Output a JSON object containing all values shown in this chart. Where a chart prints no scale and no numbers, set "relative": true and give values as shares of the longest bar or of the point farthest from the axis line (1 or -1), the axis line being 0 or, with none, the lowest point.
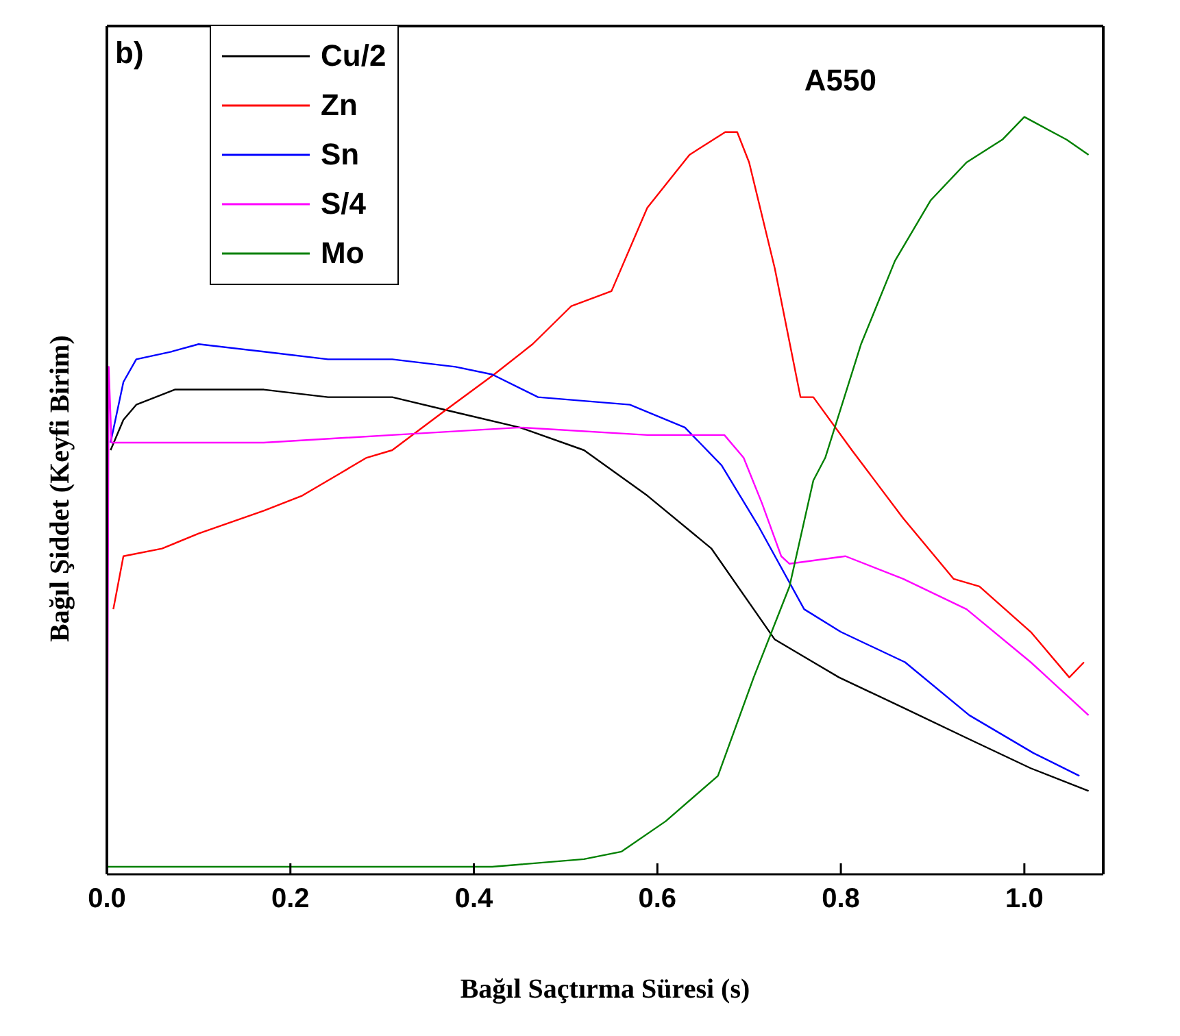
{
  "chart_data": {
    "type": "line",
    "title": "A550",
    "xlabel": "Bağıl Saçtırma Süresi (s)",
    "ylabel": "Bağıl Şiddet (Keyfi Birim)",
    "annotations": [
      "b)"
    ],
    "relative": true,
    "xlim": [
      0,
      1.086
    ],
    "xticks": [
      {
        "value": 0,
        "label": "0.0"
      },
      {
        "value": 0.2,
        "label": "0.2"
      },
      {
        "value": 0.4,
        "label": "0.4"
      },
      {
        "value": 0.6,
        "label": "0.6"
      },
      {
        "value": 0.8,
        "label": "0.8"
      },
      {
        "value": 1,
        "label": "1.0"
      }
    ],
    "legend": "top left",
    "grid": false,
    "marker": "none",
    "line_style": "solid",
    "series": [
      {
        "name": "Cu/2",
        "color": "#000000",
        "x": [
          0.004,
          0.018,
          0.032,
          0.074,
          0.116,
          0.171,
          0.241,
          0.311,
          0.38,
          0.45,
          0.52,
          0.589,
          0.659,
          0.728,
          0.77,
          0.798,
          0.868,
          0.937,
          1.007,
          1.07
        ],
        "values": [
          0.56,
          0.6,
          0.62,
          0.64,
          0.64,
          0.64,
          0.63,
          0.63,
          0.61,
          0.59,
          0.56,
          0.5,
          0.43,
          0.31,
          0.28,
          0.26,
          0.22,
          0.18,
          0.14,
          0.11
        ]
      },
      {
        "name": "Zn",
        "color": "#ff0000",
        "x": [
          0.007,
          0.018,
          0.06,
          0.1,
          0.171,
          0.213,
          0.255,
          0.283,
          0.311,
          0.366,
          0.422,
          0.464,
          0.506,
          0.55,
          0.589,
          0.635,
          0.674,
          0.687,
          0.7,
          0.728,
          0.756,
          0.77,
          0.812,
          0.868,
          0.923,
          0.951,
          1.007,
          1.049,
          1.065
        ],
        "values": [
          0.35,
          0.42,
          0.43,
          0.45,
          0.48,
          0.5,
          0.53,
          0.55,
          0.56,
          0.61,
          0.66,
          0.7,
          0.75,
          0.77,
          0.88,
          0.95,
          0.98,
          0.98,
          0.94,
          0.8,
          0.63,
          0.63,
          0.56,
          0.47,
          0.39,
          0.38,
          0.32,
          0.26,
          0.28
        ]
      },
      {
        "name": "Sn",
        "color": "#0000ff",
        "x": [
          0.004,
          0.018,
          0.032,
          0.07,
          0.1,
          0.171,
          0.241,
          0.311,
          0.38,
          0.42,
          0.47,
          0.57,
          0.63,
          0.67,
          0.71,
          0.76,
          0.8,
          0.87,
          0.94,
          1.01,
          1.06
        ],
        "values": [
          0.57,
          0.65,
          0.68,
          0.69,
          0.7,
          0.69,
          0.68,
          0.68,
          0.67,
          0.66,
          0.63,
          0.62,
          0.59,
          0.54,
          0.46,
          0.35,
          0.32,
          0.28,
          0.21,
          0.16,
          0.13
        ]
      },
      {
        "name": "S/4",
        "color": "#ff00ff",
        "x": [
          0,
          0.002,
          0.005,
          0.1,
          0.171,
          0.311,
          0.45,
          0.589,
          0.673,
          0.694,
          0.714,
          0.735,
          0.744,
          0.805,
          0.868,
          0.937,
          1.007,
          1.07
        ],
        "values": [
          0,
          0.67,
          0.57,
          0.57,
          0.57,
          0.58,
          0.59,
          0.58,
          0.58,
          0.55,
          0.49,
          0.42,
          0.41,
          0.42,
          0.39,
          0.35,
          0.28,
          0.21
        ]
      },
      {
        "name": "Mo",
        "color": "#008000",
        "x": [
          0,
          0.2,
          0.42,
          0.52,
          0.561,
          0.609,
          0.666,
          0.705,
          0.744,
          0.77,
          0.783,
          0.822,
          0.859,
          0.898,
          0.937,
          0.976,
          1,
          1.046,
          1.07
        ],
        "values": [
          0.01,
          0.01,
          0.01,
          0.02,
          0.03,
          0.07,
          0.13,
          0.26,
          0.38,
          0.52,
          0.55,
          0.7,
          0.81,
          0.89,
          0.94,
          0.97,
          1,
          0.97,
          0.95
        ]
      }
    ]
  }
}
